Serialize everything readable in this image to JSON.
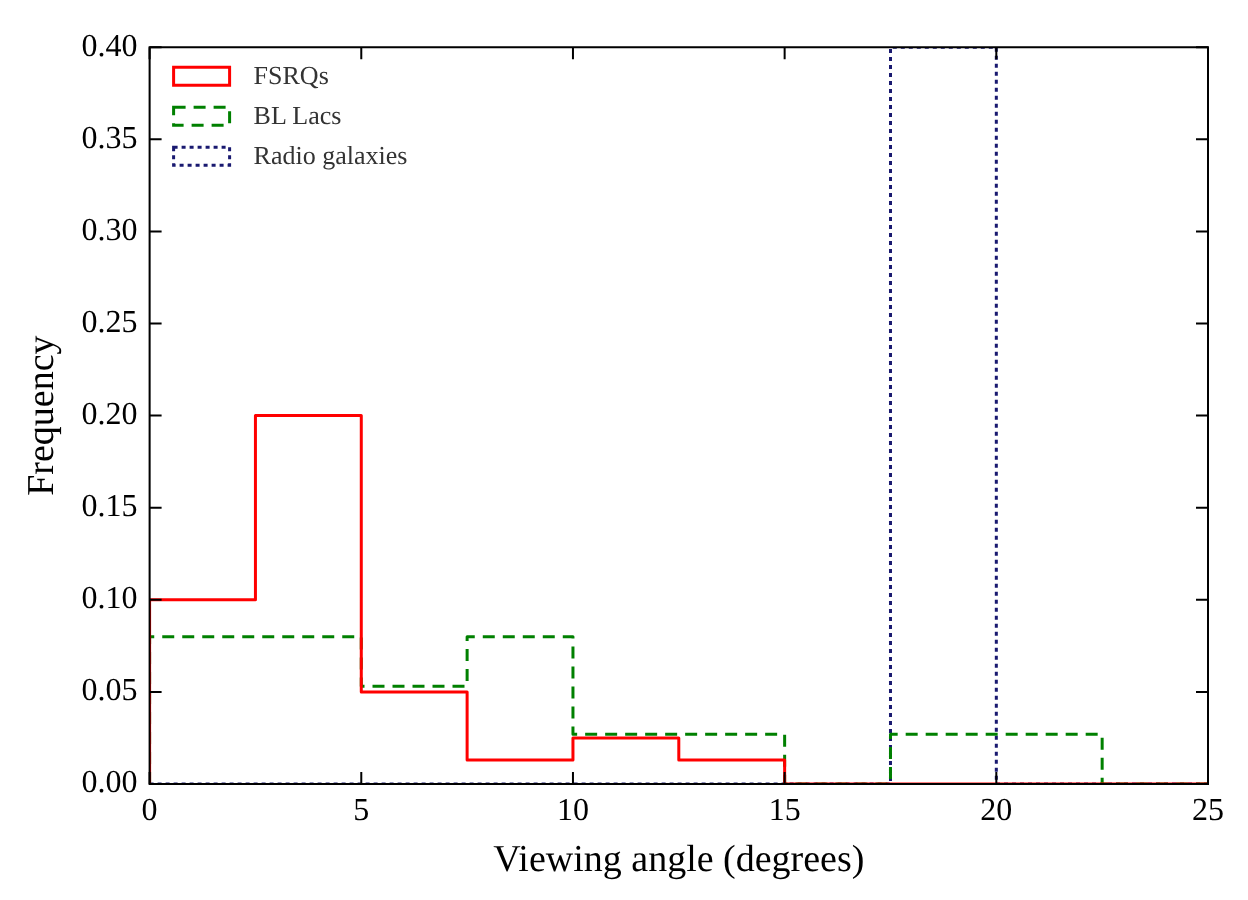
{
  "chart_data": {
    "type": "histogram",
    "xlabel": "Viewing angle (degrees)",
    "ylabel": "Frequency",
    "bins": [
      0,
      2.5,
      5,
      7.5,
      10,
      12.5,
      15,
      17.5,
      20,
      22.5,
      25
    ],
    "series": [
      {
        "name": "FSRQs",
        "color": "#ff0000",
        "line_style": "solid",
        "values": [
          0.1,
          0.2,
          0.05,
          0.013,
          0.025,
          0.013,
          0,
          0,
          0,
          0
        ]
      },
      {
        "name": "BL Lacs",
        "color": "#008000",
        "line_style": "dashed",
        "values": [
          0.08,
          0.08,
          0.053,
          0.08,
          0.027,
          0.027,
          0,
          0.027,
          0.027,
          0
        ]
      },
      {
        "name": "Radio galaxies",
        "color": "#191970",
        "line_style": "dotted",
        "values": [
          0,
          0,
          0,
          0,
          0,
          0,
          0,
          0.4,
          0,
          0
        ]
      }
    ],
    "xlim": [
      0,
      25
    ],
    "xticks": [
      0,
      5,
      10,
      15,
      20,
      25
    ],
    "ylim": [
      0,
      0.4
    ],
    "yticks": [
      {
        "value": 0,
        "label": "0.00"
      },
      {
        "value": 0.05,
        "label": "0.05"
      },
      {
        "value": 0.1,
        "label": "0.10"
      },
      {
        "value": 0.15,
        "label": "0.15"
      },
      {
        "value": 0.2,
        "label": "0.20"
      },
      {
        "value": 0.25,
        "label": "0.25"
      },
      {
        "value": 0.3,
        "label": "0.30"
      },
      {
        "value": 0.35,
        "label": "0.35"
      },
      {
        "value": 0.4,
        "label": "0.40"
      }
    ],
    "grid": false,
    "legend": "top left"
  }
}
